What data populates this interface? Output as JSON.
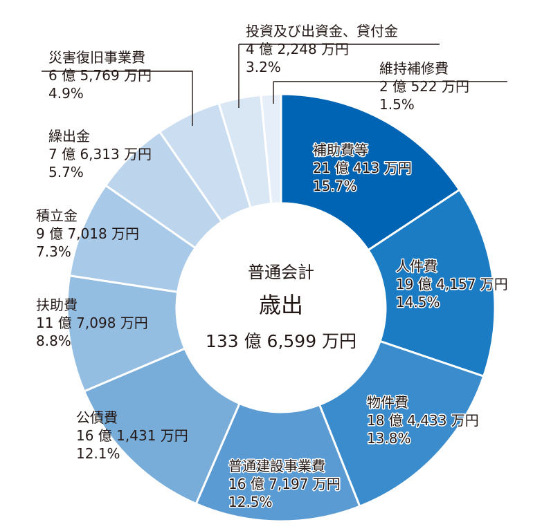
{
  "chart_data": {
    "type": "pie",
    "center": {
      "line1": "普通会計",
      "line2": "歳出",
      "line3": "133 億 6,599 万円"
    },
    "slices": [
      {
        "name": "補助費等",
        "amount": "21 億 413 万円",
        "pct_label": "15.7%",
        "value": 15.7,
        "color": "#0064b4"
      },
      {
        "name": "人件費",
        "amount": "19 億 4,157 万円",
        "pct_label": "14.5%",
        "value": 14.5,
        "color": "#1b7cc4"
      },
      {
        "name": "物件費",
        "amount": "18 億 4,433 万円",
        "pct_label": "13.8%",
        "value": 13.8,
        "color": "#3a8ccd"
      },
      {
        "name": "普通建設事業費",
        "amount": "16 億 7,197 万円",
        "pct_label": "12.5%",
        "value": 12.5,
        "color": "#5a9bd3"
      },
      {
        "name": "公債費",
        "amount": "16 億 1,431 万円",
        "pct_label": "12.1%",
        "value": 12.1,
        "color": "#79add9"
      },
      {
        "name": "扶助費",
        "amount": "11 億 7,098 万円",
        "pct_label": "8.8%",
        "value": 8.8,
        "color": "#94bde2"
      },
      {
        "name": "積立金",
        "amount": "9 億 7,018 万円",
        "pct_label": "7.3%",
        "value": 7.3,
        "color": "#a8c9e7"
      },
      {
        "name": "繰出金",
        "amount": "7 億 6,313 万円",
        "pct_label": "5.7%",
        "value": 5.7,
        "color": "#bcd5ec"
      },
      {
        "name": "災害復旧事業費",
        "amount": "6 億 5,769 万円",
        "pct_label": "4.9%",
        "value": 4.9,
        "color": "#cbdef1"
      },
      {
        "name": "投資及び出資金、貸付金",
        "amount": "4 億 2,248 万円",
        "pct_label": "3.2%",
        "value": 3.2,
        "color": "#d9e7f5"
      },
      {
        "name": "維持補修費",
        "amount": "2 億 522 万円",
        "pct_label": "1.5%",
        "value": 1.5,
        "color": "#e6eff9"
      }
    ]
  }
}
